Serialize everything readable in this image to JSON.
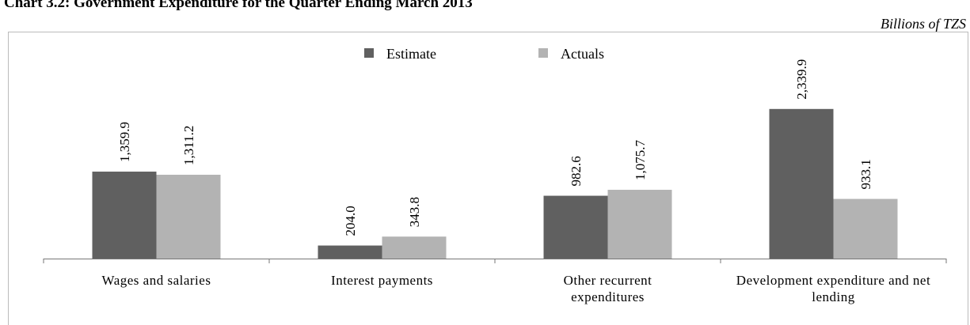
{
  "chart_data": {
    "type": "bar",
    "title": "Chart 3.2: Government Expenditure for the Quarter Ending March 2013",
    "subtitle": "Billions of TZS",
    "categories": [
      "Wages and salaries",
      "Interest payments",
      "Other recurrent expenditures",
      "Development expenditure and net lending"
    ],
    "series": [
      {
        "name": "Estimate",
        "color": "#606060",
        "values": [
          1359.9,
          204.0,
          982.6,
          2339.9
        ],
        "value_labels": [
          "1,359.9",
          "204.0",
          "982.6",
          "2,339.9"
        ]
      },
      {
        "name": "Actuals",
        "color": "#b3b3b3",
        "values": [
          1311.2,
          343.8,
          1075.7,
          933.1
        ],
        "value_labels": [
          "1,311.2",
          "343.8",
          "1,075.7",
          "933.1"
        ]
      }
    ],
    "ylim": [
      0,
      3500
    ],
    "legend": "top"
  }
}
